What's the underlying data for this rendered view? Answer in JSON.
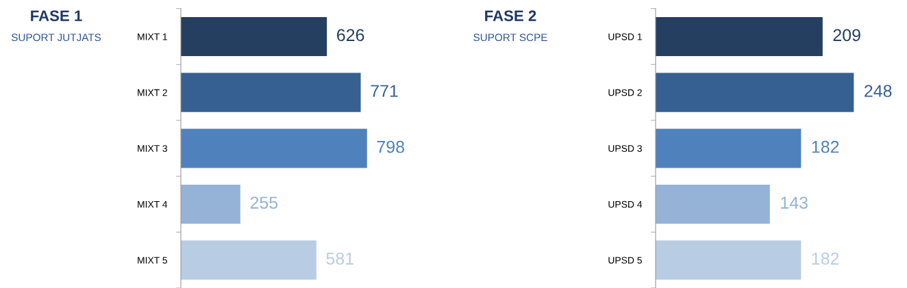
{
  "chart_data": [
    {
      "type": "bar",
      "orientation": "horizontal",
      "title": "FASE 1",
      "subtitle": "SUPORT JUTJATS",
      "categories": [
        "MIXT 1",
        "MIXT 2",
        "MIXT 3",
        "MIXT 4",
        "MIXT 5"
      ],
      "values": [
        626,
        771,
        798,
        255,
        581
      ],
      "colors": [
        "#243f60",
        "#366092",
        "#4f81bd",
        "#95b3d7",
        "#b8cce4"
      ],
      "data_labels": true
    },
    {
      "type": "bar",
      "orientation": "horizontal",
      "title": "FASE 2",
      "subtitle": "SUPORT SCPE",
      "categories": [
        "UPSD 1",
        "UPSD 2",
        "UPSD 3",
        "UPSD 4",
        "UPSD 5"
      ],
      "values": [
        209,
        248,
        182,
        143,
        182
      ],
      "colors": [
        "#243f60",
        "#366092",
        "#4f81bd",
        "#95b3d7",
        "#b8cce4"
      ],
      "data_labels": true
    }
  ]
}
